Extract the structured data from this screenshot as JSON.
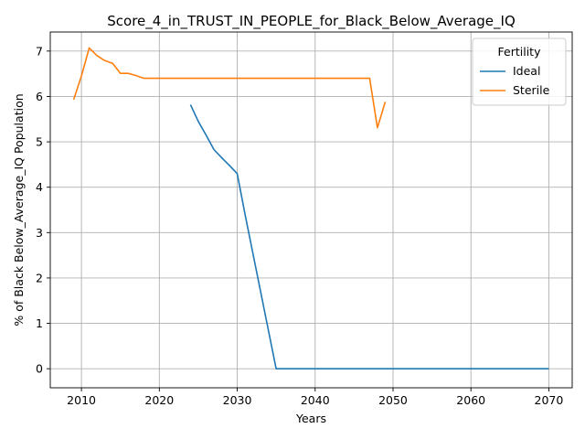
{
  "chart_data": {
    "type": "line",
    "title": "Score_4_in_TRUST_IN_PEOPLE_for_Black_Below_Average_IQ",
    "xlabel": "Years",
    "ylabel": "% of Black Below_Average_IQ Population",
    "xlim": [
      2006,
      2073
    ],
    "ylim": [
      -0.42,
      7.42
    ],
    "xticks": [
      2010,
      2020,
      2030,
      2040,
      2050,
      2060,
      2070
    ],
    "yticks": [
      0,
      1,
      2,
      3,
      4,
      5,
      6,
      7
    ],
    "grid": true,
    "legend": {
      "title": "Fertility",
      "placement": "top-right"
    },
    "series": [
      {
        "name": "Ideal",
        "color": "#1f77b4",
        "x": [
          2024,
          2025,
          2026,
          2027,
          2028,
          2029,
          2030,
          2031,
          2032,
          2033,
          2034,
          2035,
          2036,
          2040,
          2045,
          2050,
          2055,
          2060,
          2065,
          2070
        ],
        "y": [
          5.82,
          5.45,
          5.15,
          4.83,
          4.65,
          4.48,
          4.3,
          3.4,
          2.55,
          1.7,
          0.85,
          0.0,
          0.0,
          0.0,
          0.0,
          0.0,
          0.0,
          0.0,
          0.0,
          0.0
        ]
      },
      {
        "name": "Sterile",
        "color": "#ff7f0e",
        "x": [
          2009,
          2010,
          2011,
          2012,
          2013,
          2014,
          2015,
          2016,
          2017,
          2018,
          2020,
          2025,
          2030,
          2035,
          2040,
          2045,
          2047,
          2048,
          2049
        ],
        "y": [
          5.93,
          6.45,
          7.07,
          6.9,
          6.79,
          6.73,
          6.51,
          6.51,
          6.46,
          6.4,
          6.4,
          6.4,
          6.4,
          6.4,
          6.4,
          6.4,
          6.4,
          5.31,
          5.88
        ]
      }
    ]
  }
}
